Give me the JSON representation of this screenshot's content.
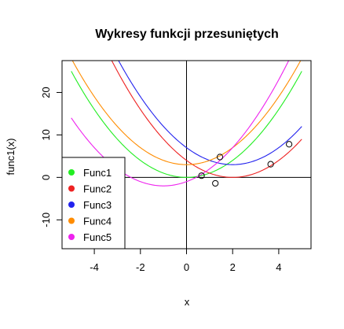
{
  "chart_data": {
    "type": "line",
    "title": "Wykresy funkcji przesuniętych",
    "xlabel": "x",
    "ylabel": "func1(x)",
    "xlim": [
      -5.4,
      5.4
    ],
    "ylim": [
      -16.8,
      27.5
    ],
    "x_ticks": [
      -4,
      -2,
      0,
      2,
      4
    ],
    "y_ticks": [
      -10,
      0,
      10,
      20
    ],
    "x_range": [
      -5,
      5
    ],
    "reference_lines": {
      "x": 0,
      "y": 0
    },
    "series": [
      {
        "name": "Func1",
        "color": "#22ee22",
        "formula": "x^2"
      },
      {
        "name": "Func2",
        "color": "#ee2222",
        "formula": "(x - 2)^2"
      },
      {
        "name": "Func3",
        "color": "#2222ee",
        "formula": "(x - 2)^2 + 3"
      },
      {
        "name": "Func4",
        "color": "#ff8c00",
        "formula": "x^2 + 3"
      },
      {
        "name": "Func5",
        "color": "#ee22ee",
        "formula": "(x + 1)^2 - 2"
      }
    ],
    "points": [
      {
        "x": 0.65,
        "y": 0.4
      },
      {
        "x": 1.25,
        "y": -1.4
      },
      {
        "x": 1.45,
        "y": 4.8
      },
      {
        "x": 3.65,
        "y": 3.1
      },
      {
        "x": 4.45,
        "y": 7.8
      }
    ],
    "legend": {
      "placement": "bottom-left",
      "entries": [
        "Func1",
        "Func2",
        "Func3",
        "Func4",
        "Func5"
      ]
    },
    "grid": false
  }
}
